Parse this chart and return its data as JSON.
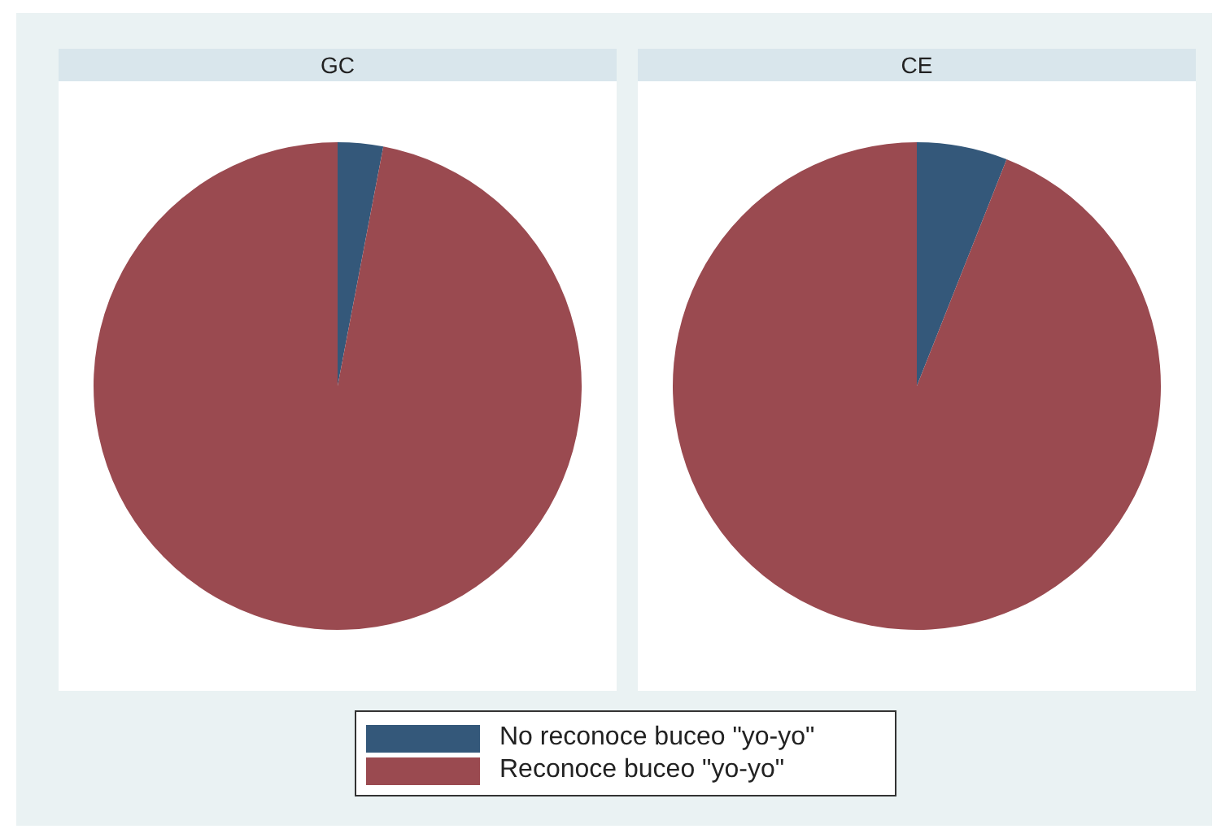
{
  "chart_data": [
    {
      "type": "pie",
      "title": "GC",
      "categories": [
        "No reconoce buceo \"yo-yo\"",
        "Reconoce buceo \"yo-yo\""
      ],
      "values": [
        3,
        97
      ],
      "colors": [
        "#34587a",
        "#9a4a50"
      ],
      "legend": "bottom"
    },
    {
      "type": "pie",
      "title": "CE",
      "categories": [
        null,
        null
      ],
      "values": [
        6,
        94
      ],
      "colors": [
        "#34587a",
        "#9a4a50"
      ]
    }
  ]
}
